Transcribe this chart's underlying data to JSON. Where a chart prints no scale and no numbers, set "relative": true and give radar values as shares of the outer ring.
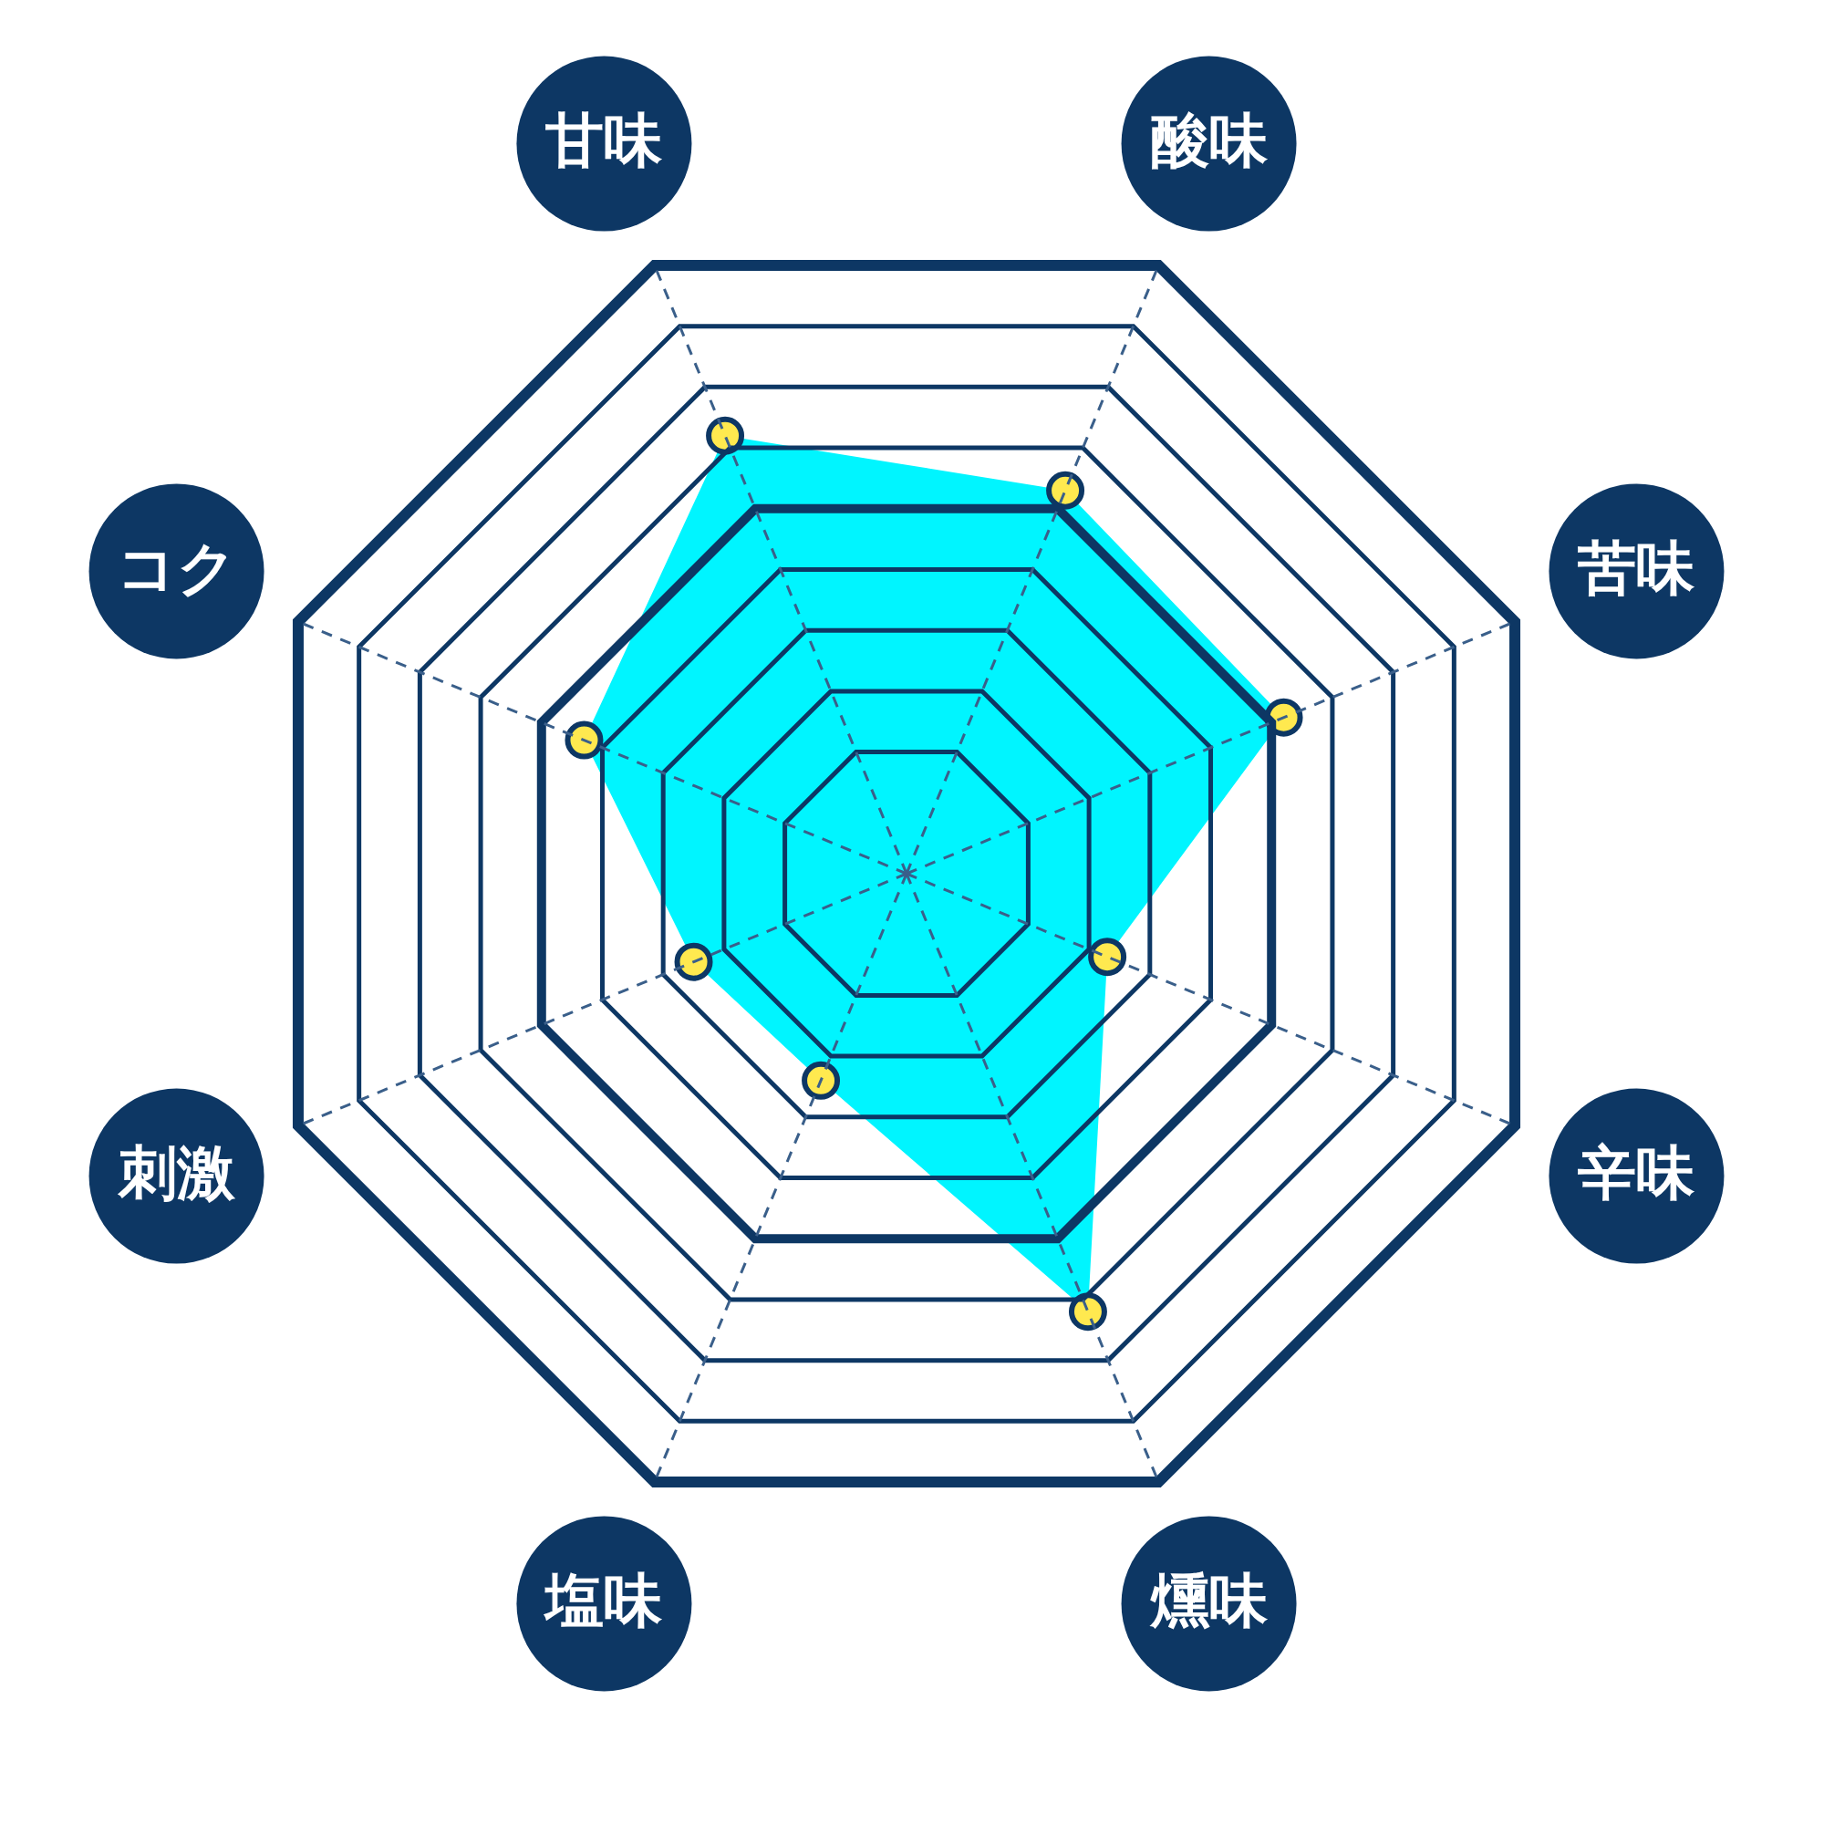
{
  "chart_data": {
    "type": "radar",
    "categories": [
      "甘味",
      "酸味",
      "苦味",
      "辛味",
      "燻味",
      "塩味",
      "刺激",
      "コク"
    ],
    "relative": true,
    "marker": "circle",
    "series": [
      {
        "color": "#00f5ff",
        "values": [
          0.72,
          0.63,
          0.62,
          0.33,
          0.72,
          0.34,
          0.35,
          0.53
        ]
      }
    ]
  }
}
